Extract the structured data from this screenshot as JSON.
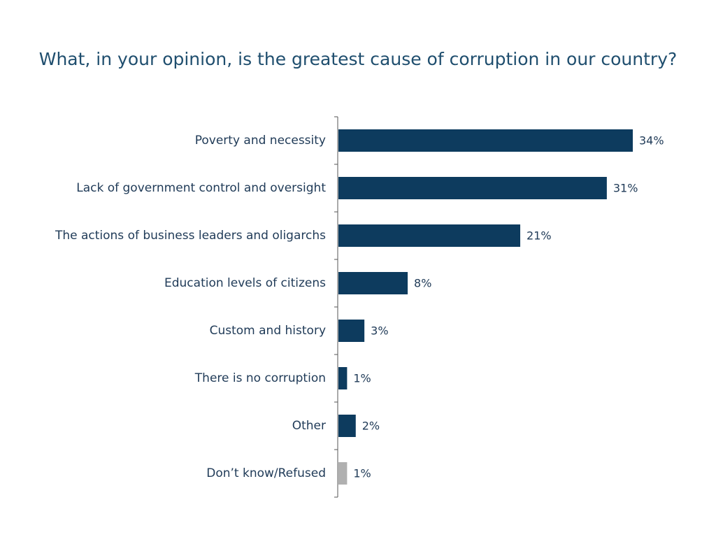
{
  "colors": {
    "title": "#1f4e6e",
    "bar": "#0d3b5e",
    "bar_muted": "#b0b0b0",
    "axis": "#555555",
    "text": "#1f3a57"
  },
  "chart_data": {
    "type": "bar",
    "orientation": "horizontal",
    "title": "What, in your opinion, is the greatest cause of corruption in our country?",
    "xlabel": "",
    "ylabel": "",
    "xlim": [
      0,
      34
    ],
    "grid": false,
    "legend": "none",
    "categories": [
      "Poverty and necessity",
      "Lack of government control and oversight",
      "The actions of business leaders and oligarchs",
      "Education levels of citizens",
      "Custom and history",
      "There is no corruption",
      "Other",
      "Don’t know/Refused"
    ],
    "values": [
      34,
      31,
      21,
      8,
      3,
      1,
      2,
      1
    ],
    "value_labels": [
      "34%",
      "31%",
      "21%",
      "8%",
      "3%",
      "1%",
      "2%",
      "1%"
    ],
    "bar_colors": [
      "bar",
      "bar",
      "bar",
      "bar",
      "bar",
      "bar",
      "bar",
      "bar_muted"
    ]
  }
}
